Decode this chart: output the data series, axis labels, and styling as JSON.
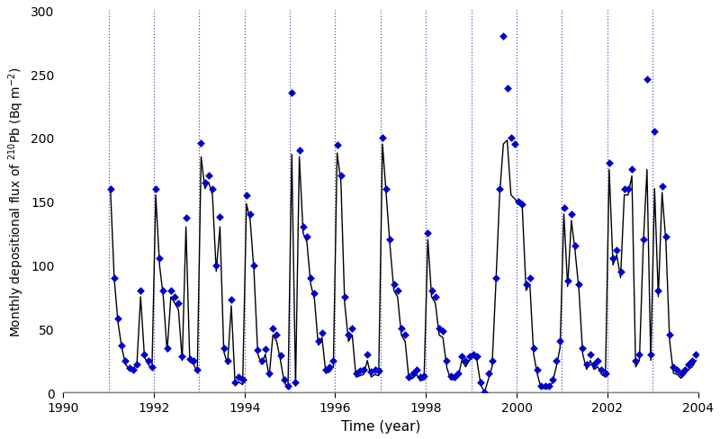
{
  "xlabel": "Time (year)",
  "ylabel": "Monthly depositional flux of $^{210}$Pb (Bq m$^{-2}$)",
  "xlim": [
    1990,
    2004
  ],
  "ylim": [
    0,
    300
  ],
  "yticks": [
    0,
    50,
    100,
    150,
    200,
    250,
    300
  ],
  "xticks": [
    1990,
    1992,
    1994,
    1996,
    1998,
    2000,
    2002,
    2004
  ],
  "vline_color": "#5555bb",
  "vline_style": ":",
  "vline_years": [
    1991,
    1992,
    1993,
    1994,
    1995,
    1996,
    1997,
    1998,
    1999,
    2000,
    2001,
    2002,
    2003
  ],
  "scatter_color": "#0000cc",
  "line_color": "#000000",
  "scatter_marker": "D",
  "scatter_size": 20,
  "monthly_x": [
    1991.042,
    1991.125,
    1991.208,
    1991.292,
    1991.375,
    1991.458,
    1991.542,
    1991.625,
    1991.708,
    1991.792,
    1991.875,
    1991.958,
    1992.042,
    1992.125,
    1992.208,
    1992.292,
    1992.375,
    1992.458,
    1992.542,
    1992.625,
    1992.708,
    1992.792,
    1992.875,
    1992.958,
    1993.042,
    1993.125,
    1993.208,
    1993.292,
    1993.375,
    1993.458,
    1993.542,
    1993.625,
    1993.708,
    1993.792,
    1993.875,
    1993.958,
    1994.042,
    1994.125,
    1994.208,
    1994.292,
    1994.375,
    1994.458,
    1994.542,
    1994.625,
    1994.708,
    1994.792,
    1994.875,
    1994.958,
    1995.042,
    1995.125,
    1995.208,
    1995.292,
    1995.375,
    1995.458,
    1995.542,
    1995.625,
    1995.708,
    1995.792,
    1995.875,
    1995.958,
    1996.042,
    1996.125,
    1996.208,
    1996.292,
    1996.375,
    1996.458,
    1996.542,
    1996.625,
    1996.708,
    1996.792,
    1996.875,
    1996.958,
    1997.042,
    1997.125,
    1997.208,
    1997.292,
    1997.375,
    1997.458,
    1997.542,
    1997.625,
    1997.708,
    1997.792,
    1997.875,
    1997.958,
    1998.042,
    1998.125,
    1998.208,
    1998.292,
    1998.375,
    1998.458,
    1998.542,
    1998.625,
    1998.708,
    1998.792,
    1998.875,
    1998.958,
    1999.042,
    1999.125,
    1999.208,
    1999.292,
    1999.375,
    1999.458,
    1999.542,
    1999.625,
    1999.708,
    1999.792,
    1999.875,
    1999.958,
    2000.042,
    2000.125,
    2000.208,
    2000.292,
    2000.375,
    2000.458,
    2000.542,
    2000.625,
    2000.708,
    2000.792,
    2000.875,
    2000.958,
    2001.042,
    2001.125,
    2001.208,
    2001.292,
    2001.375,
    2001.458,
    2001.542,
    2001.625,
    2001.708,
    2001.792,
    2001.875,
    2001.958,
    2002.042,
    2002.125,
    2002.208,
    2002.292,
    2002.375,
    2002.458,
    2002.542,
    2002.625,
    2002.708,
    2002.792,
    2002.875,
    2002.958,
    2003.042,
    2003.125,
    2003.208,
    2003.292,
    2003.375,
    2003.458,
    2003.542,
    2003.625,
    2003.708,
    2003.792,
    2003.875,
    2003.958
  ],
  "monthly_y": [
    160,
    90,
    58,
    37,
    25,
    19,
    18,
    22,
    80,
    30,
    25,
    20,
    160,
    105,
    80,
    35,
    80,
    75,
    70,
    28,
    137,
    26,
    25,
    18,
    196,
    165,
    170,
    160,
    100,
    138,
    35,
    25,
    73,
    8,
    12,
    10,
    155,
    140,
    100,
    33,
    25,
    34,
    15,
    50,
    45,
    29,
    10,
    5,
    235,
    8,
    190,
    130,
    122,
    90,
    78,
    40,
    47,
    18,
    20,
    25,
    194,
    170,
    75,
    45,
    50,
    15,
    17,
    18,
    30,
    16,
    18,
    17,
    200,
    160,
    120,
    85,
    80,
    50,
    45,
    12,
    15,
    18,
    12,
    13,
    125,
    80,
    75,
    50,
    48,
    25,
    13,
    12,
    15,
    28,
    25,
    28,
    30,
    28,
    8,
    0,
    15,
    25,
    90,
    160,
    280,
    239,
    200,
    195,
    150,
    148,
    85,
    90,
    35,
    18,
    5,
    5,
    5,
    10,
    25,
    40,
    145,
    88,
    140,
    115,
    85,
    35,
    22,
    30,
    22,
    25,
    18,
    15,
    180,
    105,
    112,
    95,
    160,
    160,
    175,
    25,
    30,
    120,
    246,
    30,
    205,
    80,
    162,
    122,
    45,
    20,
    18,
    15,
    18,
    22,
    25,
    30
  ],
  "line_y": [
    160,
    90,
    55,
    35,
    22,
    18,
    18,
    22,
    75,
    28,
    22,
    18,
    155,
    100,
    75,
    32,
    75,
    70,
    65,
    25,
    130,
    24,
    22,
    16,
    185,
    160,
    165,
    155,
    95,
    130,
    32,
    22,
    68,
    6,
    8,
    6,
    148,
    135,
    95,
    30,
    22,
    30,
    12,
    45,
    40,
    25,
    8,
    3,
    187,
    5,
    185,
    125,
    118,
    85,
    73,
    37,
    43,
    15,
    16,
    20,
    188,
    165,
    70,
    40,
    45,
    12,
    13,
    14,
    25,
    12,
    14,
    13,
    195,
    155,
    115,
    80,
    75,
    45,
    40,
    10,
    11,
    14,
    9,
    10,
    120,
    75,
    70,
    45,
    43,
    20,
    10,
    10,
    12,
    25,
    20,
    25,
    28,
    25,
    6,
    0,
    10,
    20,
    85,
    155,
    195,
    198,
    155,
    152,
    148,
    145,
    80,
    85,
    30,
    14,
    3,
    3,
    3,
    8,
    20,
    35,
    140,
    83,
    135,
    110,
    80,
    30,
    18,
    25,
    18,
    20,
    14,
    12,
    175,
    100,
    108,
    90,
    155,
    155,
    170,
    20,
    25,
    115,
    175,
    25,
    160,
    75,
    157,
    118,
    40,
    15,
    14,
    11,
    14,
    18,
    20,
    25
  ],
  "bg_color": "#ffffff",
  "axis_color": "#808080"
}
